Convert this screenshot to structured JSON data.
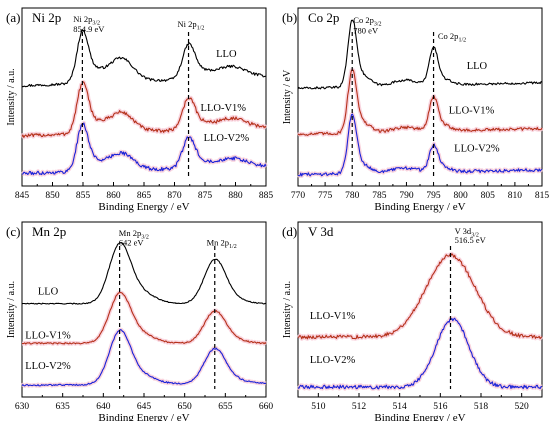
{
  "chart_data": [
    {
      "type": "line",
      "panel_label": "(a)",
      "title": "Ni 2p",
      "xlabel": "Binding Energy / eV",
      "ylabel": "Intensity / a.u.",
      "xlim": [
        845,
        885
      ],
      "xticks": [
        "845",
        "850",
        "855",
        "860",
        "865",
        "870",
        "875",
        "880",
        "885"
      ],
      "grid": false,
      "legend": "labels-on-curves",
      "colors": {
        "LLO": "#000000",
        "LLO-V1%": "#b5311b",
        "LLO-V2%": "#1a22d8"
      },
      "dashed_lines": [
        854.9,
        872.3
      ],
      "annotations": [
        {
          "text": "Ni 2p",
          "sub": "3/2",
          "x": 853.4,
          "y": 13.1
        },
        {
          "text": "854.9 eV",
          "sub": "",
          "x": 853.4,
          "y": 12.3
        },
        {
          "text": "Ni 2p",
          "sub": "1/2",
          "x": 870.5,
          "y": 12.7
        }
      ],
      "series": [
        {
          "name": "LLO",
          "baseline": 8.0,
          "slope": 0.75,
          "noise": 0.1,
          "peaks": [
            [
              854.9,
              3.6,
              0.9
            ],
            [
              856.5,
              1.0,
              1.6
            ],
            [
              861.2,
              1.9,
              2.0
            ],
            [
              872.3,
              2.5,
              1.0
            ],
            [
              874.2,
              0.6,
              1.7
            ],
            [
              879.3,
              0.9,
              2.3
            ]
          ]
        },
        {
          "name": "LLO-V1%",
          "baseline": 4.0,
          "slope": 0.7,
          "noise": 0.14,
          "peaks": [
            [
              854.9,
              3.5,
              0.9
            ],
            [
              856.5,
              0.9,
              1.6
            ],
            [
              861.2,
              1.6,
              2.0
            ],
            [
              872.3,
              2.3,
              1.0
            ],
            [
              874.2,
              0.5,
              1.7
            ],
            [
              879.3,
              0.8,
              2.3
            ]
          ]
        },
        {
          "name": "LLO-V2%",
          "baseline": 1.0,
          "slope": 0.6,
          "noise": 0.14,
          "peaks": [
            [
              854.9,
              3.3,
              0.9
            ],
            [
              856.5,
              0.8,
              1.6
            ],
            [
              861.2,
              1.4,
              2.0
            ],
            [
              872.3,
              2.2,
              1.0
            ],
            [
              874.2,
              0.5,
              1.7
            ],
            [
              879.3,
              0.7,
              2.3
            ]
          ]
        }
      ],
      "label_positions": [
        [
          878.5,
          10.3
        ],
        [
          878.0,
          6.0
        ],
        [
          878.5,
          3.6
        ]
      ],
      "ylim": [
        0,
        14.2
      ]
    },
    {
      "type": "line",
      "panel_label": "(b)",
      "title": "Co 2p",
      "xlabel": "Binding Energy / eV",
      "ylabel": "Intensity / eV",
      "xlim": [
        770,
        815
      ],
      "xticks": [
        "770",
        "775",
        "780",
        "785",
        "790",
        "795",
        "800",
        "805",
        "810",
        "815"
      ],
      "grid": false,
      "legend": "labels-on-curves",
      "colors": {
        "LLO": "#000000",
        "LLO-V1%": "#b5311b",
        "LLO-V2%": "#1a22d8"
      },
      "dashed_lines": [
        780,
        795
      ],
      "annotations": [
        {
          "text": "Co 2p",
          "sub": "3/2",
          "x": 780.2,
          "y": 14.2
        },
        {
          "text": "780 eV",
          "sub": "",
          "x": 780.2,
          "y": 13.3
        },
        {
          "text": "Co 2p",
          "sub": "1/2",
          "x": 795.8,
          "y": 12.8
        }
      ],
      "series": [
        {
          "name": "LLO",
          "baseline": 8.5,
          "slope": 0.5,
          "noise": 0.1,
          "peaks": [
            [
              780,
              5.4,
              0.8
            ],
            [
              781.8,
              1.0,
              1.5
            ],
            [
              789.7,
              0.5,
              2.3
            ],
            [
              795,
              3.0,
              0.8
            ],
            [
              796.7,
              0.5,
              1.5
            ]
          ]
        },
        {
          "name": "LLO-V1%",
          "baseline": 4.5,
          "slope": 0.5,
          "noise": 0.13,
          "peaks": [
            [
              780,
              5.1,
              0.8
            ],
            [
              781.8,
              0.9,
              1.5
            ],
            [
              789.7,
              0.4,
              2.3
            ],
            [
              795,
              2.7,
              0.8
            ],
            [
              796.7,
              0.5,
              1.5
            ]
          ]
        },
        {
          "name": "LLO-V2%",
          "baseline": 1.0,
          "slope": 0.4,
          "noise": 0.14,
          "peaks": [
            [
              780,
              4.8,
              0.8
            ],
            [
              781.8,
              0.8,
              1.5
            ],
            [
              789.7,
              0.4,
              2.3
            ],
            [
              795,
              2.1,
              0.8
            ],
            [
              796.7,
              0.4,
              1.5
            ]
          ]
        }
      ],
      "label_positions": [
        [
          803.0,
          10.2
        ],
        [
          802.0,
          6.3
        ],
        [
          803.0,
          3.0
        ]
      ],
      "ylim": [
        0,
        15.5
      ]
    },
    {
      "type": "line",
      "panel_label": "(c)",
      "title": "Mn 2p",
      "xlabel": "Binding Energy / eV",
      "ylabel": "Intensity / a.u.",
      "xlim": [
        630,
        660
      ],
      "xticks": [
        "630",
        "635",
        "640",
        "645",
        "650",
        "655",
        "660"
      ],
      "grid": false,
      "legend": "labels-on-curves",
      "colors": {
        "LLO": "#000000",
        "LLO-V1%": "#b5311b",
        "LLO-V2%": "#1a22d8"
      },
      "dashed_lines": [
        642,
        653.7
      ],
      "annotations": [
        {
          "text": "Mn 2p",
          "sub": "3/2",
          "x": 641.9,
          "y": 13.8
        },
        {
          "text": "642 eV",
          "sub": "",
          "x": 641.9,
          "y": 13.0
        },
        {
          "text": "Mn 2p",
          "sub": "1/2",
          "x": 652.7,
          "y": 13.0
        }
      ],
      "series": [
        {
          "name": "LLO",
          "baseline": 8.0,
          "slope": 0.0,
          "noise": 0.04,
          "peaks": [
            [
              642,
              4.8,
              1.3
            ],
            [
              644.4,
              1.0,
              1.8
            ],
            [
              653.7,
              3.7,
              1.3
            ],
            [
              656,
              0.4,
              1.5
            ]
          ]
        },
        {
          "name": "LLO-V1%",
          "baseline": 4.6,
          "slope": 0.0,
          "noise": 0.06,
          "peaks": [
            [
              642,
              4.0,
              1.3
            ],
            [
              644.4,
              0.8,
              1.8
            ],
            [
              653.7,
              2.7,
              1.3
            ],
            [
              656,
              0.3,
              1.5
            ]
          ]
        },
        {
          "name": "LLO-V2%",
          "baseline": 1.0,
          "slope": 0.2,
          "noise": 0.06,
          "peaks": [
            [
              642,
              4.3,
              1.3
            ],
            [
              644.4,
              0.8,
              1.8
            ],
            [
              653.7,
              2.9,
              1.3
            ],
            [
              656,
              0.3,
              1.5
            ]
          ]
        }
      ],
      "label_positions": [
        [
          633.2,
          8.8
        ],
        [
          633.2,
          5.0
        ],
        [
          633.2,
          2.4
        ]
      ],
      "ylim": [
        0,
        15
      ]
    },
    {
      "type": "line",
      "panel_label": "(d)",
      "title": "V 3d",
      "xlabel": "Binding Energy / eV",
      "ylabel": "Intensity / a.u.",
      "xlim": [
        509,
        521
      ],
      "xticks": [
        "510",
        "512",
        "514",
        "516",
        "518",
        "520"
      ],
      "grid": false,
      "legend": "labels-on-curves",
      "colors": {
        "LLO-V1%": "#b5311b",
        "LLO-V2%": "#1a22d8"
      },
      "dashed_lines": [
        516.5
      ],
      "annotations": [
        {
          "text": "V 3d",
          "sub": "3/2",
          "x": 516.7,
          "y": 16.3
        },
        {
          "text": "516.5 eV",
          "sub": "",
          "x": 516.7,
          "y": 15.4
        }
      ],
      "series": [
        {
          "name": "LLO-V1%",
          "baseline": 6.0,
          "slope": 0.0,
          "noise": 0.18,
          "peaks": [
            [
              516.5,
              8.2,
              1.2
            ]
          ]
        },
        {
          "name": "LLO-V2%",
          "baseline": 1.0,
          "slope": 0.0,
          "noise": 0.18,
          "peaks": [
            [
              516.6,
              6.8,
              0.8
            ]
          ]
        }
      ],
      "label_positions": [
        [
          510.7,
          7.8
        ],
        [
          510.7,
          3.4
        ]
      ],
      "ylim": [
        0,
        17.5
      ]
    }
  ]
}
